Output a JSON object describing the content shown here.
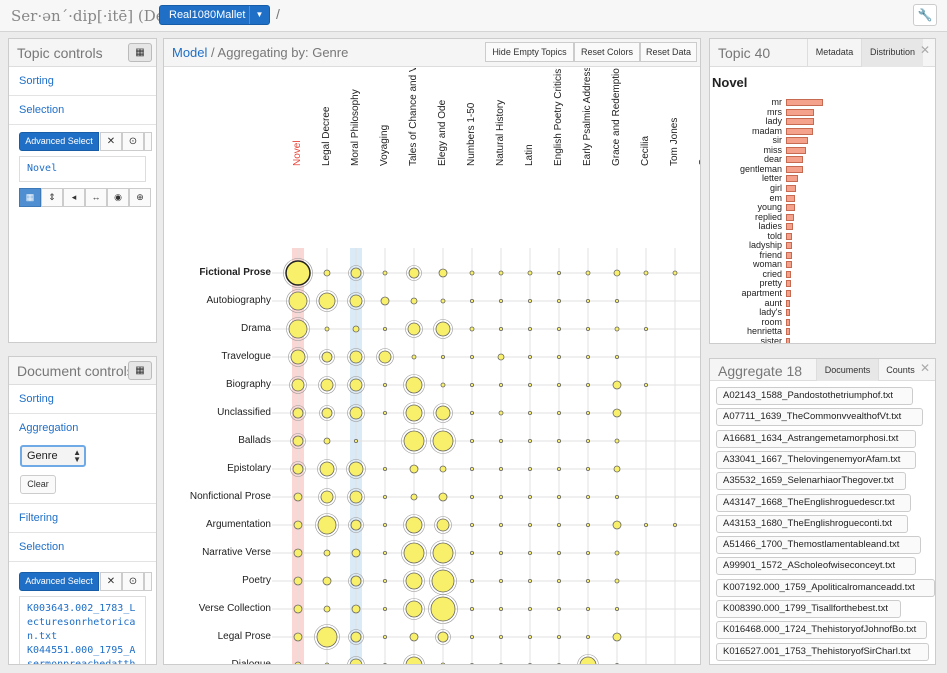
{
  "app": {
    "title": "Ser·ən´·dip[·itē] (Dev)",
    "model": "Real1080Mallet",
    "separator": "/"
  },
  "topic_controls": {
    "title": "Topic controls",
    "sorting": "Sorting",
    "selection": "Selection",
    "advanced_select": "Advanced Select",
    "selected": "Novel"
  },
  "document_controls": {
    "title": "Document controls",
    "sorting": "Sorting",
    "aggregation": "Aggregation",
    "aggregation_value": "Genre",
    "clear": "Clear",
    "filtering": "Filtering",
    "selection": "Selection",
    "advanced_select": "Advanced Select",
    "selected": [
      "K003643.002_1783_L",
      "ecturesonrhetorica",
      "n.txt",
      "K044551.000_1795_A",
      "sermonpreachedatth"
    ]
  },
  "main": {
    "model_link": "Model",
    "crumb": " / Aggregating by: Genre",
    "buttons": {
      "hide_empty": "Hide Empty Topics",
      "reset_colors": "Reset Colors",
      "reset_data": "Reset Data"
    },
    "columns": [
      "Novel",
      "Legal Decree",
      "Moral Philosophy",
      "Voyaging",
      "Tales of Chance and Virtue",
      "Elegy and Ode",
      "Numbers 1-50",
      "Natural History",
      "Latin",
      "English Poetry Criticism",
      "Early Psalmic Address",
      "Grace and Redemption",
      "Cecilia",
      "Tom Jones",
      "Cuce"
    ],
    "rows": [
      "Fictional Prose",
      "Autobiography",
      "Drama",
      "Travelogue",
      "Biography",
      "Unclassified",
      "Ballads",
      "Epistolary",
      "Nonfictional Prose",
      "Argumentation",
      "Narrative Verse",
      "Poetry",
      "Verse Collection",
      "Legal Prose",
      "Dialogue"
    ],
    "highlight_column_color": "#e8463a",
    "selected_column_color": "#5aa0dc"
  },
  "topic_panel": {
    "title": "Topic 40",
    "tab_metadata": "Metadata",
    "tab_distribution": "Distribution",
    "chart_data": {
      "type": "bar",
      "title": "Novel",
      "categories": [
        "mr",
        "mrs",
        "lady",
        "madam",
        "sir",
        "miss",
        "dear",
        "gentleman",
        "letter",
        "girl",
        "em",
        "young",
        "replied",
        "ladies",
        "told",
        "ladyship",
        "friend",
        "woman",
        "cried",
        "pretty",
        "apartment",
        "aunt",
        "lady's",
        "room",
        "henrietta",
        "sister"
      ],
      "values": [
        37,
        28,
        28,
        27,
        22,
        20,
        17,
        17,
        12,
        10,
        9,
        9,
        8,
        7,
        6,
        6,
        6,
        6,
        5,
        5,
        5,
        4,
        4,
        4,
        4,
        4
      ]
    }
  },
  "aggregate_panel": {
    "title": "Aggregate 18",
    "tab_documents": "Documents",
    "tab_counts": "Counts",
    "documents": [
      "A02143_1588_Pandostothetriumphof.txt",
      "A07711_1639_TheCommonvvealthofVt.txt",
      "A16681_1634_Astrangemetamorphosi.txt",
      "A33041_1667_ThelovingenemyorAfam.txt",
      "A35532_1659_SelenarhiaorThegover.txt",
      "A43147_1668_TheEnglishroguedescr.txt",
      "A43153_1680_TheEnglishrogueconti.txt",
      "A51466_1700_Themostlamentableand.txt",
      "A99901_1572_AScholeofwiseconceyt.txt",
      "K007192.000_1759_Apoliticalromanceadd.txt",
      "K008390.000_1799_Tisallforthebest.txt",
      "K016468.000_1724_ThehistoryofJohnofBo.txt",
      "K016527.001_1753_ThehistoryofSirCharl.txt"
    ]
  }
}
